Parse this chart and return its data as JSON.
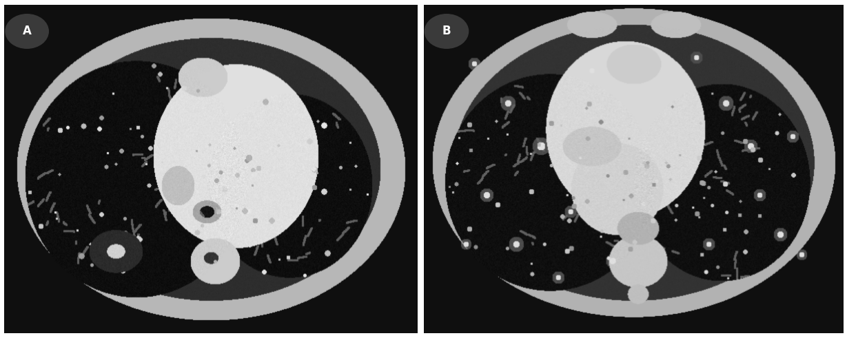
{
  "figure_width": 12.29,
  "figure_height": 4.91,
  "dpi": 100,
  "background_color": "#ffffff",
  "panel_A_label": "A",
  "panel_B_label": "B",
  "label_fontsize": 12,
  "label_color": "white",
  "label_bg_color": "#3a3a3a",
  "border_color": "#999999",
  "border_linewidth": 1.0
}
